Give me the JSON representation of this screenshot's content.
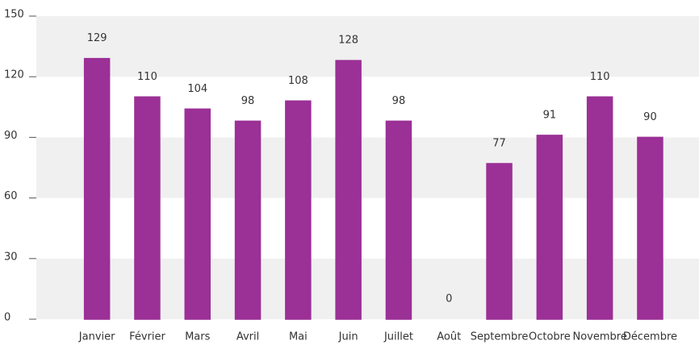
{
  "chart_data": {
    "type": "bar",
    "categories": [
      "Janvier",
      "Février",
      "Mars",
      "Avril",
      "Mai",
      "Juin",
      "Juillet",
      "Août",
      "Septembre",
      "Octobre",
      "Novembre",
      "Décembre"
    ],
    "values": [
      129,
      110,
      104,
      98,
      108,
      128,
      98,
      0,
      77,
      91,
      110,
      90
    ],
    "color": "#9b3096",
    "band_color": "#f0f0f0",
    "ylim": [
      0,
      150
    ],
    "yticks": [
      0,
      30,
      60,
      90,
      120,
      150
    ],
    "grid": true
  }
}
